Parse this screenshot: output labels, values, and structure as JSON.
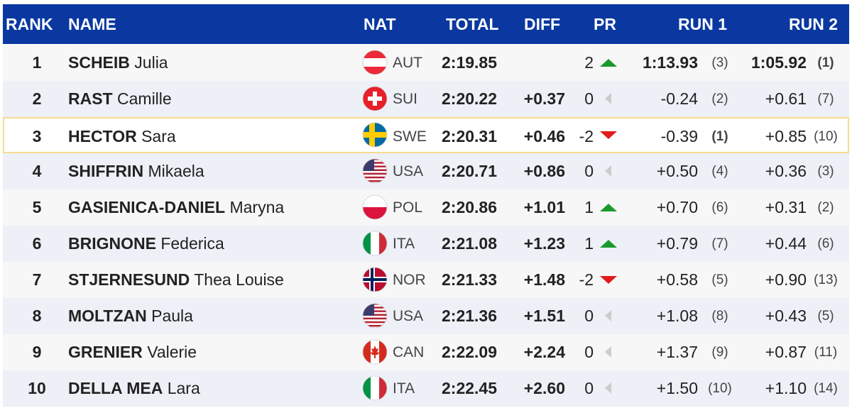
{
  "header": [
    "RANK",
    "NAME",
    "NAT",
    "TOTAL",
    "DIFF",
    "PR",
    "RUN 1",
    "RUN 2"
  ],
  "rows": [
    {
      "rank": 1,
      "surname": "SCHEIB",
      "first": "Julia",
      "nat": "AUT",
      "total": "2:19.85",
      "pr": 2,
      "run1": "1:13.93",
      "run1_rank": "(3)",
      "run2": "1:05.92",
      "run2_rank": "(1)"
    },
    {
      "rank": 2,
      "surname": "RAST",
      "first": "Camille",
      "nat": "SUI",
      "total": "2:20.22",
      "diff": "+0.37",
      "pr": 0,
      "run1": "-0.24",
      "run1_rank": "(2)",
      "run2": "+0.61",
      "run2_rank": "(7)"
    },
    {
      "rank": 3,
      "surname": "HECTOR",
      "first": "Sara",
      "nat": "SWE",
      "total": "2:20.31",
      "diff": "+0.46",
      "pr": -2,
      "run1": "-0.39",
      "run1_rank": "(1)",
      "run2": "+0.85",
      "run2_rank": "(10)"
    },
    {
      "rank": 4,
      "surname": "SHIFFRIN",
      "first": "Mikaela",
      "nat": "USA",
      "total": "2:20.71",
      "diff": "+0.86",
      "pr": 0,
      "run1": "+0.50",
      "run1_rank": "(4)",
      "run2": "+0.36",
      "run2_rank": "(3)"
    },
    {
      "rank": 5,
      "surname": "GASIENICA-DANIEL",
      "first": "Maryna",
      "nat": "POL",
      "total": "2:20.86",
      "diff": "+1.01",
      "pr": 1,
      "run1": "+0.70",
      "run1_rank": "(6)",
      "run2": "+0.31",
      "run2_rank": "(2)"
    },
    {
      "rank": 6,
      "surname": "BRIGNONE",
      "first": "Federica",
      "nat": "ITA",
      "total": "2:21.08",
      "diff": "+1.23",
      "pr": 1,
      "run1": "+0.79",
      "run1_rank": "(7)",
      "run2": "+0.44",
      "run2_rank": "(6)"
    },
    {
      "rank": 7,
      "surname": "STJERNESUND",
      "first": "Thea Louise",
      "nat": "NOR",
      "total": "2:21.33",
      "diff": "+1.48",
      "pr": -2,
      "run1": "+0.58",
      "run1_rank": "(5)",
      "run2": "+0.90",
      "run2_rank": "(13)"
    },
    {
      "rank": 8,
      "surname": "MOLTZAN",
      "first": "Paula",
      "nat": "USA",
      "total": "2:21.36",
      "diff": "+1.51",
      "pr": 0,
      "run1": "+1.08",
      "run1_rank": "(8)",
      "run2": "+0.43",
      "run2_rank": "(5)"
    },
    {
      "rank": 9,
      "surname": "GRENIER",
      "first": "Valerie",
      "nat": "CAN",
      "total": "2:22.09",
      "diff": "+2.24",
      "pr": 0,
      "run1": "+1.37",
      "run1_rank": "(9)",
      "run2": "+0.87",
      "run2_rank": "(11)"
    },
    {
      "rank": 10,
      "surname": "DELLA MEA",
      "first": "Lara",
      "nat": "ITA",
      "total": "2:22.45",
      "diff": "+2.60",
      "pr": 0,
      "run1": "+1.50",
      "run1_rank": "(10)",
      "run2": "+1.10",
      "run2_rank": "(14)"
    }
  ]
}
